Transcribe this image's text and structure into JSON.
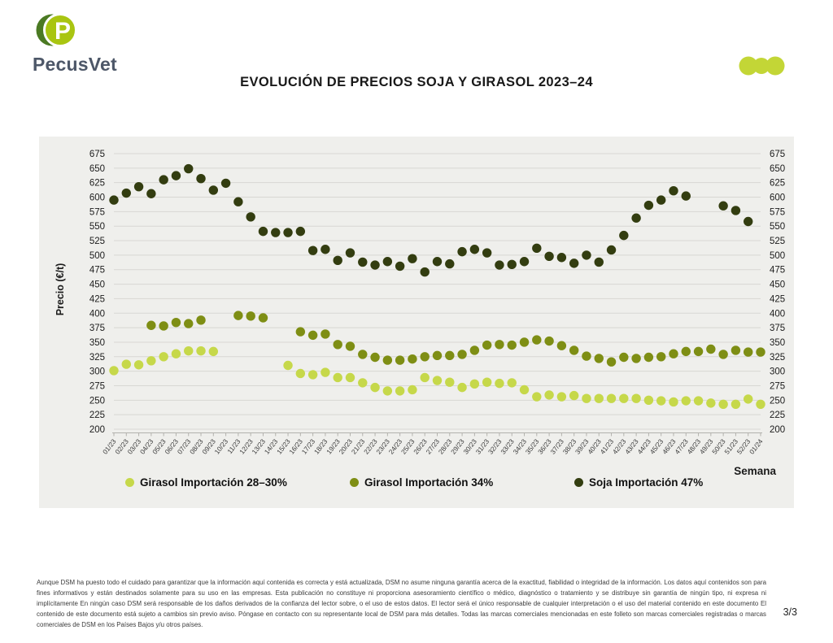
{
  "header": {
    "brand": "PecusVet",
    "title": "EVOLUCIÓN DE PRECIOS SOJA Y GIRASOL 2023–24"
  },
  "theme": {
    "panel_bg": "#efefec",
    "grid_color": "#d8d7d3",
    "accent_lime": "#c3d636",
    "logo_dark_green": "#4b7a23",
    "logo_lime": "#a9c511",
    "brand_text": "#4d5768"
  },
  "chart_data": {
    "type": "scatter",
    "title": "EVOLUCIÓN DE PRECIOS SOJA Y GIRASOL 2023–24",
    "xlabel": "Semana",
    "ylabel": "Precio (€/t)",
    "ylim": [
      200,
      675
    ],
    "ytick_step": 25,
    "grid": true,
    "legend_position": "bottom",
    "categories": [
      "01/23",
      "02/23",
      "03/23",
      "04/23",
      "05/23",
      "06/23",
      "07/23",
      "08/23",
      "09/23",
      "10/23",
      "11/23",
      "12/23",
      "13/23",
      "14/23",
      "15/23",
      "16/23",
      "17/23",
      "18/23",
      "19/23",
      "20/23",
      "21/23",
      "22/23",
      "23/23",
      "24/23",
      "25/23",
      "26/23",
      "27/23",
      "28/23",
      "29/23",
      "30/23",
      "31/23",
      "32/23",
      "33/23",
      "34/23",
      "35/23",
      "36/23",
      "37/23",
      "38/23",
      "39/23",
      "40/23",
      "41/23",
      "42/23",
      "43/23",
      "44/23",
      "45/23",
      "46/23",
      "47/23",
      "48/23",
      "49/23",
      "50/23",
      "51/23",
      "52/23",
      "01/24"
    ],
    "series": [
      {
        "name": "Girasol Importación 28–30%",
        "color": "#c6d84a",
        "values": [
          301,
          312,
          311,
          318,
          325,
          330,
          335,
          335,
          334,
          null,
          null,
          null,
          null,
          null,
          310,
          296,
          294,
          298,
          289,
          289,
          280,
          272,
          266,
          266,
          268,
          289,
          284,
          281,
          272,
          278,
          281,
          279,
          280,
          268,
          256,
          259,
          256,
          258,
          253,
          253,
          253,
          253,
          253,
          250,
          249,
          247,
          249,
          249,
          245,
          243,
          243,
          252,
          243
        ]
      },
      {
        "name": "Girasol Importación 34%",
        "color": "#7e8e14",
        "values": [
          null,
          null,
          null,
          379,
          378,
          384,
          382,
          388,
          null,
          null,
          396,
          395,
          392,
          null,
          null,
          368,
          362,
          364,
          346,
          343,
          329,
          324,
          319,
          319,
          321,
          325,
          327,
          327,
          329,
          336,
          345,
          346,
          345,
          350,
          354,
          352,
          344,
          336,
          326,
          322,
          316,
          324,
          322,
          324,
          325,
          330,
          334,
          334,
          338,
          329,
          336,
          333,
          333
        ]
      },
      {
        "name": "Soja Importación 47%",
        "color": "#333d10",
        "values": [
          595,
          607,
          618,
          606,
          630,
          637,
          649,
          632,
          612,
          624,
          592,
          566,
          541,
          539,
          539,
          541,
          508,
          510,
          491,
          504,
          488,
          483,
          489,
          481,
          494,
          471,
          489,
          485,
          506,
          510,
          504,
          483,
          484,
          489,
          512,
          498,
          496,
          486,
          500,
          488,
          509,
          534,
          564,
          586,
          595,
          611,
          602,
          null,
          null,
          585,
          577,
          558,
          null
        ]
      }
    ]
  },
  "footer": {
    "disclaimer": "Aunque DSM ha puesto todo el cuidado para garantizar que la información aquí contenida es correcta y está actualizada, DSM no asume ninguna garantía acerca de la exactitud, fiabilidad o integridad de la información. Los datos aquí contenidos son para fines informativos y están destinados solamente para su uso en las empresas. Esta publicación no constituye ni proporciona asesoramiento científico o médico, diagnóstico o tratamiento y se distribuye sin garantía de ningún tipo, ni expresa ni implícitamente En ningún caso DSM será responsable de los daños derivados de la confianza del lector sobre, o el uso de estos datos. El lector será el único responsable de cualquier interpretación o el uso del material contenido en este documento El contenido de este documento está sujeto a cambios sin previo aviso. Póngase en contacto con su representante local de DSM para más detalles. Todas las marcas comerciales mencionadas en este folleto son marcas comerciales registradas o marcas comerciales de DSM en los Países Bajos y/u otros países.",
    "page": "3/3"
  }
}
